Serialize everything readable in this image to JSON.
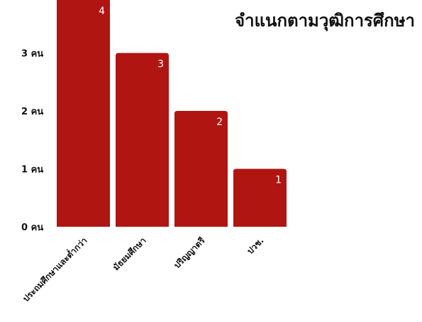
{
  "chart_data": {
    "type": "bar",
    "title": "จำแนกตามวุฒิการศึกษา",
    "categories": [
      "ประถมศึกษาและต่ำกว่า",
      "มัธยมศึกษา",
      "ปริญญาตรี",
      "ปวช."
    ],
    "values": [
      4,
      3,
      2,
      1
    ],
    "data_labels": [
      "4",
      "3",
      "2",
      "1"
    ],
    "y_ticks": [
      0,
      1,
      2,
      3
    ],
    "y_tick_labels": [
      "0 คน",
      "1 คน",
      "2 คน",
      "3 คน"
    ],
    "ylim": [
      0,
      3.9
    ],
    "xlabel": "",
    "ylabel": "",
    "grid": false,
    "legend": "none",
    "bar_color": "#b01512"
  }
}
